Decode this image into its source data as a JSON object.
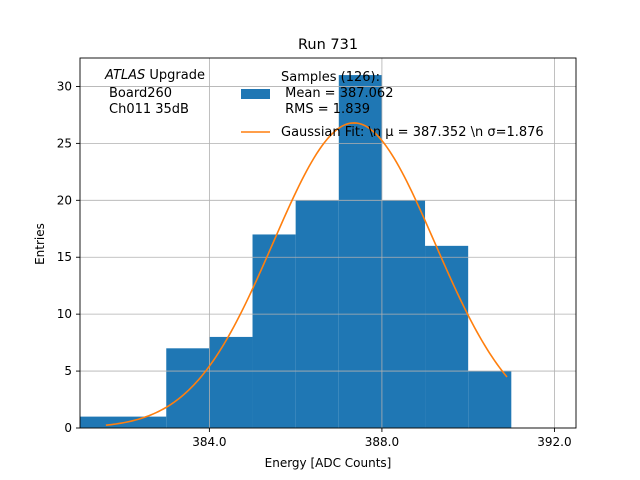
{
  "chart_data": {
    "type": "bar",
    "title": "Run 731",
    "xlabel": "Energy [ADC Counts]",
    "ylabel": "Entries",
    "xlim": [
      381.0,
      392.5
    ],
    "ylim": [
      0,
      32.5
    ],
    "x_ticks": [
      384.0,
      388.0,
      392.0
    ],
    "x_tick_labels": [
      "384.0",
      "388.0",
      "392.0"
    ],
    "y_ticks": [
      0,
      5,
      10,
      15,
      20,
      25,
      30
    ],
    "y_tick_labels": [
      "0",
      "5",
      "10",
      "15",
      "20",
      "25",
      "30"
    ],
    "grid": true,
    "bins": [
      {
        "x0": 381.0,
        "x1": 383.0,
        "count": 1
      },
      {
        "x0": 383.0,
        "x1": 384.0,
        "count": 7
      },
      {
        "x0": 384.0,
        "x1": 385.0,
        "count": 8
      },
      {
        "x0": 385.0,
        "x1": 386.0,
        "count": 17
      },
      {
        "x0": 386.0,
        "x1": 387.0,
        "count": 20
      },
      {
        "x0": 387.0,
        "x1": 388.0,
        "count": 31
      },
      {
        "x0": 388.0,
        "x1": 389.0,
        "count": 20
      },
      {
        "x0": 389.0,
        "x1": 390.0,
        "count": 16
      },
      {
        "x0": 390.0,
        "x1": 391.0,
        "count": 5
      }
    ],
    "fit": {
      "mu": 387.352,
      "sigma": 1.876,
      "amplitude": 26.8,
      "x_range": [
        381.6,
        390.9
      ]
    },
    "bar_color": "#1f77b4",
    "fit_color": "#ff7f0e",
    "legend": {
      "placement": "top-right",
      "entries": [
        {
          "lines": [
            "Samples (126):",
            " Mean = 387.062",
            " RMS = 1.839"
          ]
        },
        {
          "lines": [
            "Gaussian Fit: \\n μ = 387.352 \\n σ=1.876"
          ]
        }
      ]
    },
    "annotation": {
      "lines": [
        "ATLAS Upgrade",
        "Board260",
        "Ch011 35dB"
      ],
      "italic_word": "ATLAS",
      "rest_of_first_line": " Upgrade"
    }
  }
}
